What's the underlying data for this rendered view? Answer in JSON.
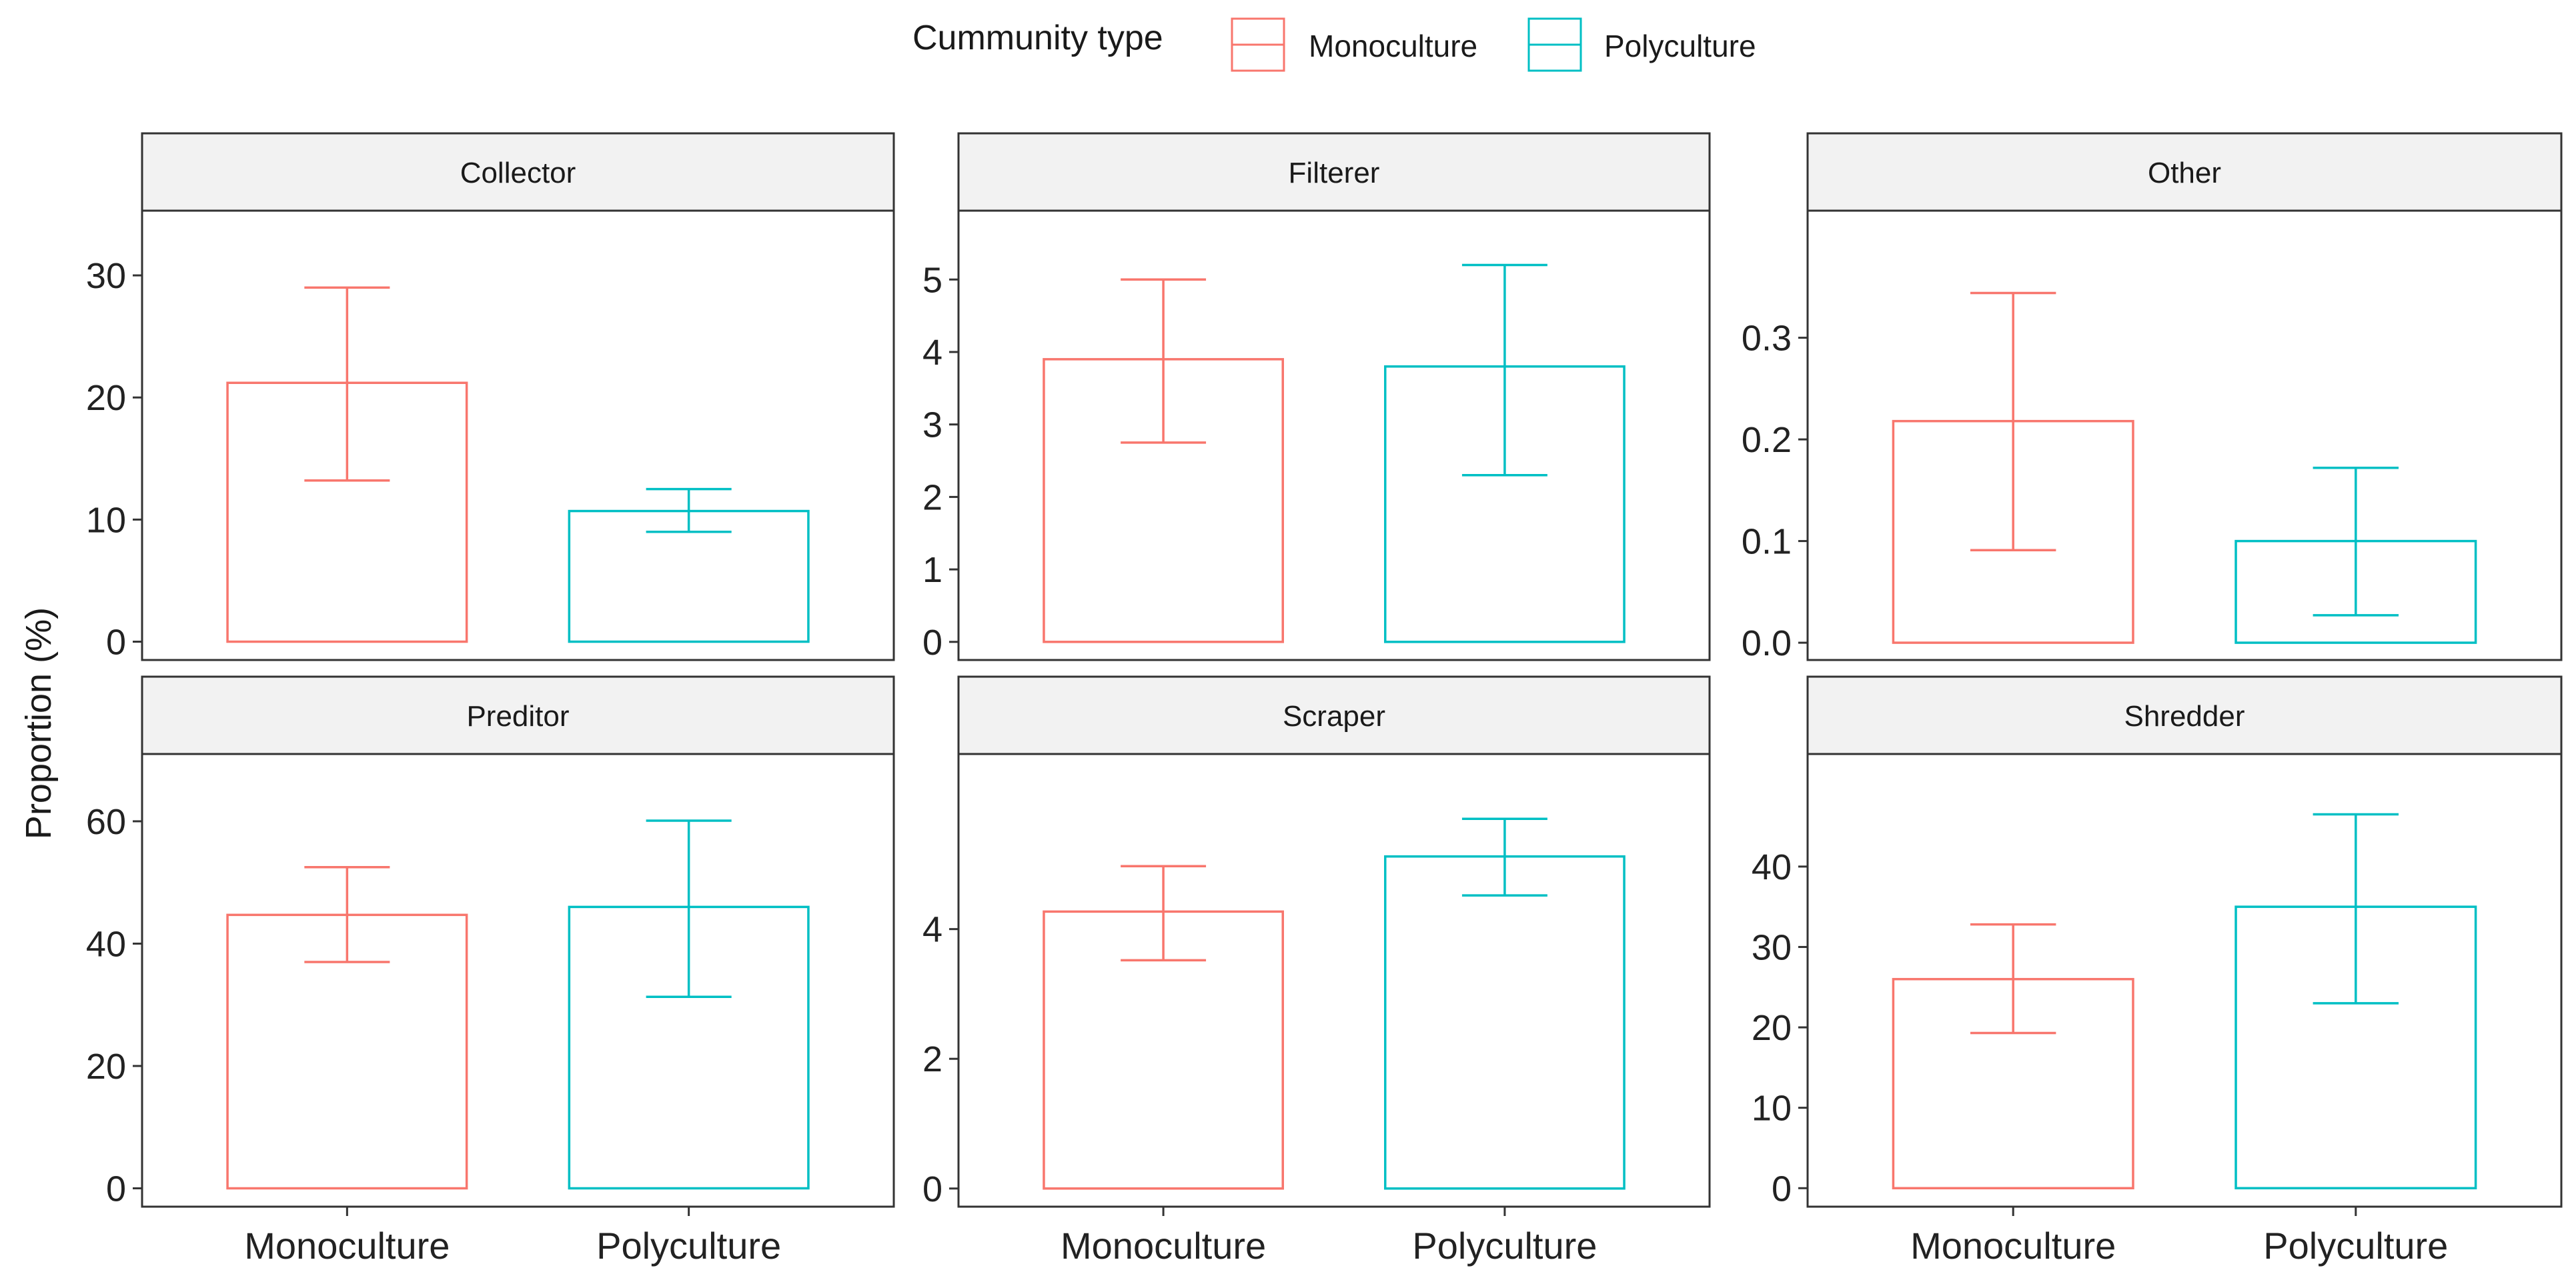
{
  "legend": {
    "title": "Cummunity type",
    "items": [
      {
        "label": "Monoculture",
        "color": "#F8766D"
      },
      {
        "label": "Polyculture",
        "color": "#00BFC4"
      }
    ]
  },
  "chart_data": {
    "type": "bar",
    "ylabel": "Proportion (%)",
    "xlabel": "",
    "categories": [
      "Monoculture",
      "Polyculture"
    ],
    "colors": {
      "Monoculture": "#F8766D",
      "Polyculture": "#00BFC4"
    },
    "facets": [
      {
        "name": "Collector",
        "ylim": [
          -1.5,
          35.3
        ],
        "yticks": [
          0,
          10,
          20,
          30
        ],
        "values": [
          21.2,
          10.7
        ],
        "err_low": [
          13.2,
          9.0
        ],
        "err_high": [
          29.0,
          12.5
        ]
      },
      {
        "name": "Filterer",
        "ylim": [
          -0.25,
          5.95
        ],
        "yticks": [
          0,
          1,
          2,
          3,
          4,
          5
        ],
        "values": [
          3.9,
          3.8
        ],
        "err_low": [
          2.75,
          2.3
        ],
        "err_high": [
          5.0,
          5.2
        ]
      },
      {
        "name": "Other",
        "ylim": [
          -0.017,
          0.425
        ],
        "yticks": [
          0.0,
          0.1,
          0.2,
          0.3
        ],
        "ytick_labels": [
          "0.0",
          "0.1",
          "0.2",
          "0.3"
        ],
        "values": [
          0.218,
          0.1
        ],
        "err_low": [
          0.091,
          0.027
        ],
        "err_high": [
          0.344,
          0.172
        ]
      },
      {
        "name": "Preditor",
        "ylim": [
          -3,
          71
        ],
        "yticks": [
          0,
          20,
          40,
          60
        ],
        "values": [
          44.7,
          46.0
        ],
        "err_low": [
          37.0,
          31.3
        ],
        "err_high": [
          52.5,
          60.1
        ]
      },
      {
        "name": "Scraper",
        "ylim": [
          -0.28,
          6.7
        ],
        "yticks": [
          0,
          2,
          4
        ],
        "values": [
          4.27,
          5.12
        ],
        "err_low": [
          3.52,
          4.52
        ],
        "err_high": [
          4.97,
          5.7
        ]
      },
      {
        "name": "Shredder",
        "ylim": [
          -2.3,
          54
        ],
        "yticks": [
          0,
          10,
          20,
          30,
          40
        ],
        "values": [
          26.0,
          35.0
        ],
        "err_low": [
          19.3,
          23.0
        ],
        "err_high": [
          32.8,
          46.5
        ]
      }
    ]
  }
}
